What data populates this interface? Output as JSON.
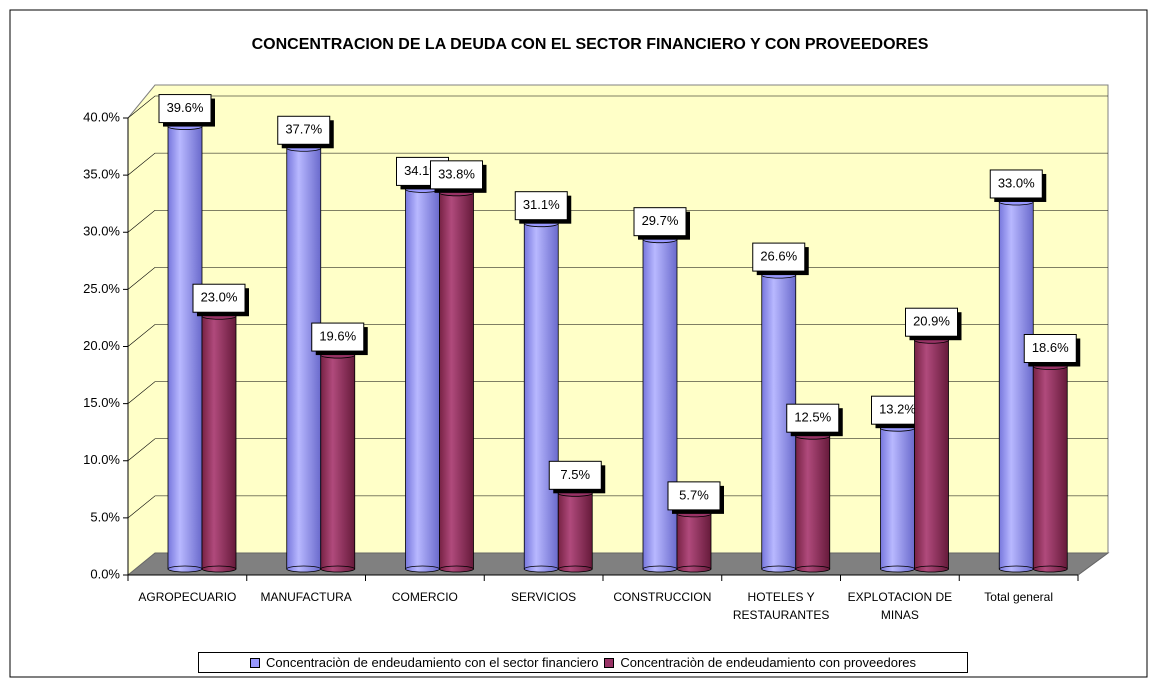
{
  "chart_data": {
    "type": "bar3d",
    "title": "CONCENTRACION DE LA DEUDA CON EL SECTOR FINANCIERO Y CON PROVEEDORES",
    "categories": [
      "AGROPECUARIO",
      "MANUFACTURA",
      "COMERCIO",
      "SERVICIOS",
      "CONSTRUCCION",
      "HOTELES Y RESTAURANTES",
      "EXPLOTACION DE MINAS",
      "Total general"
    ],
    "series": [
      {
        "name": "Concentraciòn de endeudamiento con el sector financiero",
        "color": "#9999ff",
        "values": [
          39.6,
          37.7,
          34.1,
          31.1,
          29.7,
          26.6,
          13.2,
          33.0
        ],
        "value_labels": [
          "39.6%",
          "37.7%",
          "34.1%",
          "31.1%",
          "29.7%",
          "26.6%",
          "13.2%",
          "33.0%"
        ]
      },
      {
        "name": "Concentraciòn de endeudamiento con proveedores",
        "color": "#993366",
        "values": [
          23.0,
          19.6,
          33.8,
          7.5,
          5.7,
          12.5,
          20.9,
          18.6
        ],
        "value_labels": [
          "23.0%",
          "19.6%",
          "33.8%",
          "7.5%",
          "5.7%",
          "12.5%",
          "20.9%",
          "18.6%"
        ]
      }
    ],
    "ylim": [
      0,
      40
    ],
    "yticks": [
      {
        "value": 0,
        "label": "0.0%"
      },
      {
        "value": 5,
        "label": "5.0%"
      },
      {
        "value": 10,
        "label": "10.0%"
      },
      {
        "value": 15,
        "label": "15.0%"
      },
      {
        "value": 20,
        "label": "20.0%"
      },
      {
        "value": 25,
        "label": "25.0%"
      },
      {
        "value": 30,
        "label": "30.0%"
      },
      {
        "value": 35,
        "label": "35.0%"
      },
      {
        "value": 40,
        "label": "40.0%"
      }
    ],
    "grid": true,
    "legend": "bottom"
  }
}
